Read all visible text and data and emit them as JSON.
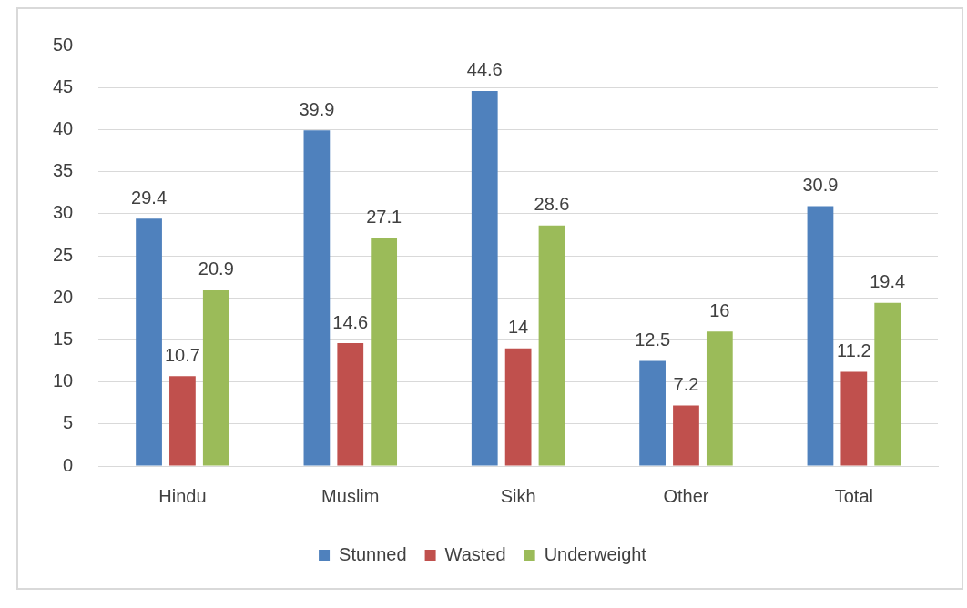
{
  "chart_data": {
    "type": "bar",
    "categories": [
      "Hindu",
      "Muslim",
      "Sikh",
      "Other",
      "Total"
    ],
    "series": [
      {
        "name": "Stunned",
        "color": "#4f81bd",
        "values": [
          29.4,
          39.9,
          44.6,
          12.5,
          30.9
        ]
      },
      {
        "name": "Wasted",
        "color": "#c0504d",
        "values": [
          10.7,
          14.6,
          14,
          7.2,
          11.2
        ]
      },
      {
        "name": "Underweight",
        "color": "#9bbb59",
        "values": [
          20.9,
          27.1,
          28.6,
          16,
          19.4
        ]
      }
    ],
    "ylim": [
      0,
      50
    ],
    "yticks": [
      0,
      5,
      10,
      15,
      20,
      25,
      30,
      35,
      40,
      45,
      50
    ],
    "grid": "y",
    "legend": "bottom",
    "data_labels": true
  }
}
